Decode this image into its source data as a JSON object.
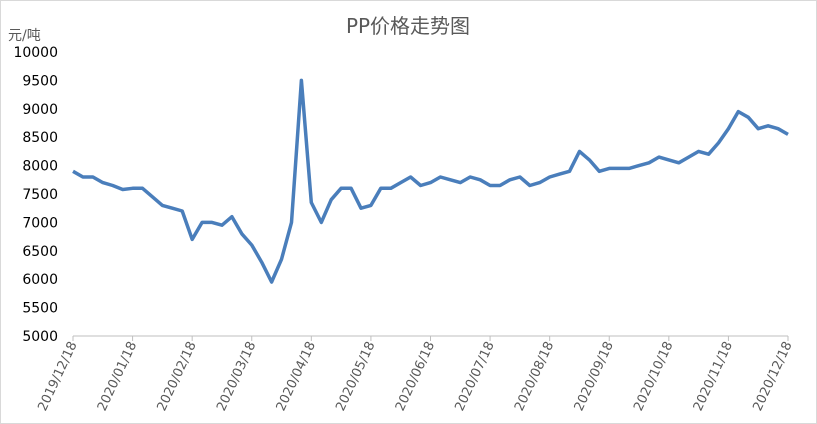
{
  "chart_data": {
    "type": "line",
    "title": "PP价格走势图",
    "y_label": "元/吨",
    "categories": [
      "2019/12/18",
      null,
      null,
      null,
      null,
      null,
      "2020/01/18",
      null,
      null,
      null,
      null,
      null,
      "2020/02/18",
      null,
      null,
      null,
      null,
      null,
      "2020/03/18",
      null,
      null,
      null,
      null,
      null,
      "2020/04/18",
      null,
      null,
      null,
      null,
      null,
      "2020/05/18",
      null,
      null,
      null,
      null,
      null,
      "2020/06/18",
      null,
      null,
      null,
      null,
      null,
      "2020/07/18",
      null,
      null,
      null,
      null,
      null,
      "2020/08/18",
      null,
      null,
      null,
      null,
      null,
      "2020/09/18",
      null,
      null,
      null,
      null,
      null,
      "2020/10/18",
      null,
      null,
      null,
      null,
      null,
      "2020/11/18",
      null,
      null,
      null,
      null,
      null,
      "2020/12/18"
    ],
    "series": [
      {
        "name": "PP",
        "color": "#4a7ebb",
        "values": [
          7900,
          7800,
          7800,
          7700,
          7650,
          7580,
          7600,
          7600,
          7450,
          7300,
          7250,
          7200,
          6700,
          7000,
          7000,
          6950,
          7100,
          6800,
          6600,
          6300,
          5950,
          6350,
          7000,
          9500,
          7350,
          7000,
          7400,
          7600,
          7600,
          7250,
          7300,
          7600,
          7600,
          7700,
          7800,
          7650,
          7700,
          7800,
          7750,
          7700,
          7800,
          7750,
          7650,
          7650,
          7750,
          7800,
          7650,
          7700,
          7800,
          7850,
          7900,
          8250,
          8100,
          7900,
          7950,
          7950,
          7950,
          8000,
          8050,
          8150,
          8100,
          8050,
          8150,
          8250,
          8200,
          8400,
          8650,
          8950,
          8850,
          8650,
          8700,
          8650,
          8550
        ]
      }
    ],
    "ylim": [
      5000,
      10000
    ],
    "yticks": [
      5000,
      5500,
      6000,
      6500,
      7000,
      7500,
      8000,
      8500,
      9000,
      9500,
      10000
    ],
    "grid": false
  }
}
